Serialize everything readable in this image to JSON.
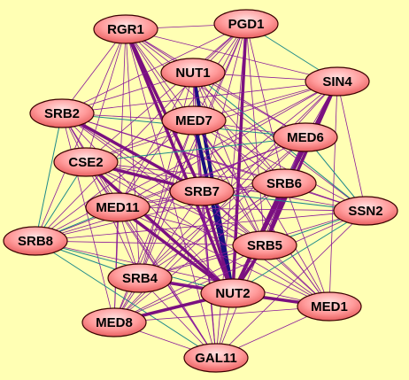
{
  "nodes": [
    {
      "label": "RGR1"
    },
    {
      "label": "PGD1"
    },
    {
      "label": "NUT1"
    },
    {
      "label": "SIN4"
    },
    {
      "label": "SRB2"
    },
    {
      "label": "MED7"
    },
    {
      "label": "MED6"
    },
    {
      "label": "CSE2"
    },
    {
      "label": "SRB6"
    },
    {
      "label": "SRB7"
    },
    {
      "label": "MED11"
    },
    {
      "label": "SSN2"
    },
    {
      "label": "SRB8"
    },
    {
      "label": "SRB5"
    },
    {
      "label": "SRB4"
    },
    {
      "label": "NUT2"
    },
    {
      "label": "MED1"
    },
    {
      "label": "MED8"
    },
    {
      "label": "GAL11"
    }
  ]
}
